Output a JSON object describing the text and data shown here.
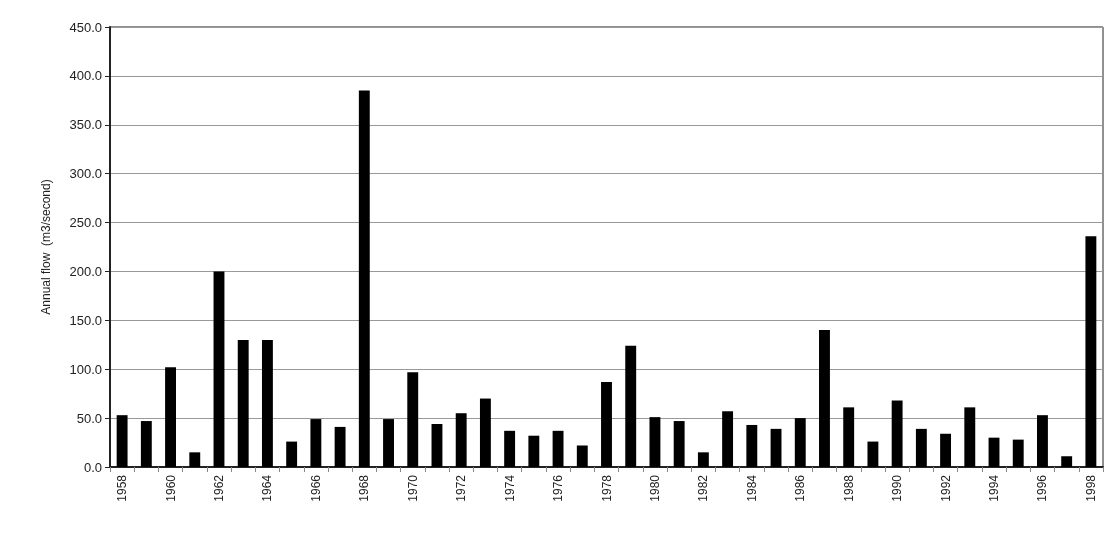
{
  "chart_data": {
    "type": "bar",
    "ylabel": "Annual flow  (m3/second)",
    "categories": [
      "1958",
      null,
      "1960",
      null,
      "1962",
      null,
      "1964",
      null,
      "1966",
      null,
      "1968",
      null,
      "1970",
      null,
      "1972",
      null,
      "1974",
      null,
      "1976",
      null,
      "1978",
      null,
      "1980",
      null,
      "1982",
      null,
      "1984",
      null,
      "1986",
      null,
      "1988",
      null,
      "1990",
      null,
      "1992",
      null,
      "1994",
      null,
      "1996",
      null,
      "1998"
    ],
    "values": [
      53,
      47,
      102,
      15,
      200,
      130,
      130,
      26,
      49,
      41,
      385,
      49,
      97,
      44,
      55,
      70,
      37,
      32,
      37,
      22,
      87,
      124,
      51,
      47,
      15,
      57,
      43,
      39,
      50,
      140,
      61,
      26,
      68,
      39,
      34,
      61,
      30,
      28,
      53,
      11,
      236
    ],
    "color": "#000000",
    "ylim": [
      0,
      450
    ],
    "yticks": [
      {
        "value": 0,
        "label": "0.0"
      },
      {
        "value": 50,
        "label": "50.0"
      },
      {
        "value": 100,
        "label": "100.0"
      },
      {
        "value": 150,
        "label": "150.0"
      },
      {
        "value": 200,
        "label": "200.0"
      },
      {
        "value": 250,
        "label": "250.0"
      },
      {
        "value": 300,
        "label": "300.0"
      },
      {
        "value": 350,
        "label": "350.0"
      },
      {
        "value": 400,
        "label": "400.0"
      },
      {
        "value": 450,
        "label": "450.0"
      }
    ],
    "grid": "y"
  }
}
